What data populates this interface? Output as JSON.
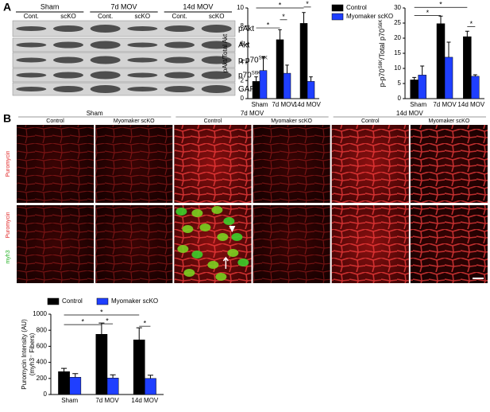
{
  "panels": [
    "A",
    "B"
  ],
  "blot": {
    "groups": [
      {
        "label": "Sham",
        "lanes": [
          "Cont.",
          "scKO"
        ]
      },
      {
        "label": "7d MOV",
        "lanes": [
          "Cont.",
          "scKO"
        ]
      },
      {
        "label": "14d MOV",
        "lanes": [
          "Cont.",
          "scKO"
        ]
      }
    ],
    "rows": [
      {
        "text": "pAkt"
      },
      {
        "text": "Akt"
      },
      {
        "text": "p-p70",
        "sup": "S6K"
      },
      {
        "text": "p70",
        "sup": "S6K"
      },
      {
        "text": "GAPDH"
      }
    ]
  },
  "micrographs": {
    "groups": [
      {
        "label": "Sham",
        "columns": [
          "Control",
          "Myomaker scKO"
        ]
      },
      {
        "label": "7d MOV",
        "columns": [
          "Control",
          "Myomaker scKO"
        ]
      },
      {
        "label": "14d MOV",
        "columns": [
          "Control",
          "Myomaker scKO"
        ]
      }
    ],
    "rows": [
      [
        {
          "text": "Puromycin",
          "color": "#e02020"
        }
      ],
      [
        {
          "text": "Puromycin",
          "color": "#e02020"
        },
        {
          "text": "myh3",
          "color": "#20b020"
        }
      ]
    ]
  },
  "chart_data": [
    {
      "type": "bar",
      "ylabel": [
        "pAkt/Total Akt"
      ],
      "categories": [
        "Sham",
        "7d MOV",
        "14d MOV"
      ],
      "series": [
        {
          "name": "Control",
          "color": "#000000",
          "values": [
            1.9,
            6.5,
            8.3
          ],
          "errors": [
            0.5,
            1.1,
            1.2
          ]
        },
        {
          "name": "Myomaker scKO",
          "color": "#1f3fff",
          "values": [
            3.1,
            2.8,
            1.9
          ],
          "errors": [
            1.5,
            0.9,
            0.5
          ]
        }
      ],
      "ylim": [
        0,
        10
      ],
      "yticks": [
        0,
        2,
        4,
        6,
        8,
        10
      ],
      "legend": "right",
      "annotations": [
        "*",
        "*",
        "*",
        "*"
      ]
    },
    {
      "type": "bar",
      "ylabel_parts": [
        "p-p70",
        "S6K",
        "/Total p70",
        "S6K"
      ],
      "categories": [
        "Sham",
        "7d MOV",
        "14d MOV"
      ],
      "series": [
        {
          "color": "#000000",
          "values": [
            6.2,
            24.8,
            20.5
          ],
          "errors": [
            0.8,
            2.5,
            1.8
          ]
        },
        {
          "color": "#1f3fff",
          "values": [
            7.8,
            13.7,
            7.4
          ],
          "errors": [
            3.0,
            5.0,
            0.5
          ]
        }
      ],
      "ylim": [
        0,
        30
      ],
      "yticks": [
        0,
        5,
        10,
        15,
        20,
        25,
        30
      ],
      "annotations": [
        "*",
        "*",
        "*"
      ]
    },
    {
      "type": "bar",
      "ylabel": [
        "Puromycin Intensity (AU)",
        "(myh3⁻ Fibers)"
      ],
      "categories": [
        "Sham",
        "7d MOV",
        "14d MOV"
      ],
      "series": [
        {
          "name": "Control",
          "color": "#000000",
          "values": [
            285,
            750,
            680
          ],
          "errors": [
            40,
            140,
            150
          ]
        },
        {
          "name": "Myomaker scKO",
          "color": "#1f3fff",
          "values": [
            215,
            205,
            200
          ],
          "errors": [
            45,
            40,
            40
          ]
        }
      ],
      "ylim": [
        0,
        1000
      ],
      "yticks": [
        0,
        200,
        400,
        600,
        800,
        1000
      ],
      "legend": "top",
      "annotations": [
        "*",
        "*",
        "*",
        "*"
      ]
    }
  ]
}
